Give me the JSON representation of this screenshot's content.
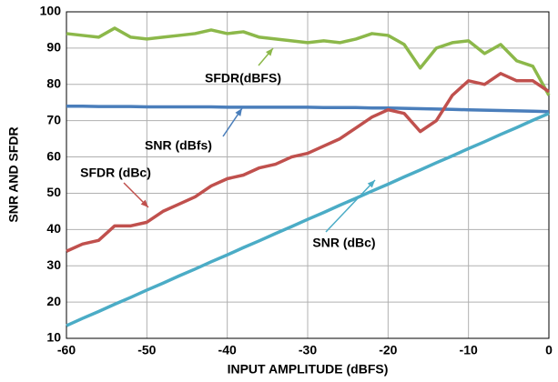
{
  "chart_data": {
    "type": "line",
    "x_label": "INPUT AMPLITUDE (dBFS)",
    "y_label": "SNR AND SFDR",
    "x": [
      -60,
      -58,
      -56,
      -54,
      -52,
      -50,
      -48,
      -46,
      -44,
      -42,
      -40,
      -38,
      -36,
      -34,
      -32,
      -30,
      -28,
      -26,
      -24,
      -22,
      -20,
      -18,
      -16,
      -14,
      -12,
      -10,
      -8,
      -6,
      -4,
      -2,
      0
    ],
    "series": [
      {
        "name": "SFDR(dBFS)",
        "color": "#8cb84a",
        "values": [
          94,
          93.5,
          93,
          95.5,
          93,
          92.5,
          93,
          93.5,
          94,
          95,
          94,
          94.5,
          93,
          92.5,
          92,
          91.5,
          92,
          91.5,
          92.5,
          94,
          93.5,
          91,
          84.5,
          90,
          91.5,
          92,
          88.5,
          91,
          86.5,
          85,
          77
        ]
      },
      {
        "name": "SNR (dBfs)",
        "color": "#4a7ebb",
        "values": [
          74,
          74,
          73.9,
          73.9,
          73.9,
          73.8,
          73.8,
          73.8,
          73.8,
          73.8,
          73.7,
          73.7,
          73.7,
          73.7,
          73.7,
          73.7,
          73.6,
          73.6,
          73.6,
          73.5,
          73.5,
          73.4,
          73.3,
          73.2,
          73.1,
          73,
          72.9,
          72.8,
          72.7,
          72.6,
          72.5
        ]
      },
      {
        "name": "SFDR (dBc)",
        "color": "#c0504d",
        "values": [
          34,
          36,
          37,
          41,
          41,
          42,
          45,
          47,
          49,
          52,
          54,
          55,
          57,
          58,
          60,
          61,
          63,
          65,
          68,
          71,
          73,
          72,
          67,
          70,
          77,
          81,
          80,
          83,
          81,
          81,
          78
        ]
      },
      {
        "name": "SNR (dBc)",
        "color": "#4bacc6",
        "values": [
          13.5,
          15.5,
          17.4,
          19.4,
          21.3,
          23.3,
          25.2,
          27.2,
          29.1,
          31.1,
          33,
          35,
          36.9,
          38.9,
          40.8,
          42.8,
          44.7,
          46.7,
          48.6,
          50.6,
          52.5,
          54.5,
          56.4,
          58.4,
          60.3,
          62.3,
          64.2,
          66.2,
          68.1,
          70.1,
          72
        ]
      }
    ],
    "xlim": [
      -60,
      0
    ],
    "xticks": [
      -60,
      -50,
      -40,
      -30,
      -20,
      -10,
      0
    ],
    "ylim": [
      10,
      100
    ],
    "yticks": [
      10,
      20,
      30,
      40,
      50,
      60,
      70,
      80,
      90,
      100
    ],
    "grid": true
  }
}
